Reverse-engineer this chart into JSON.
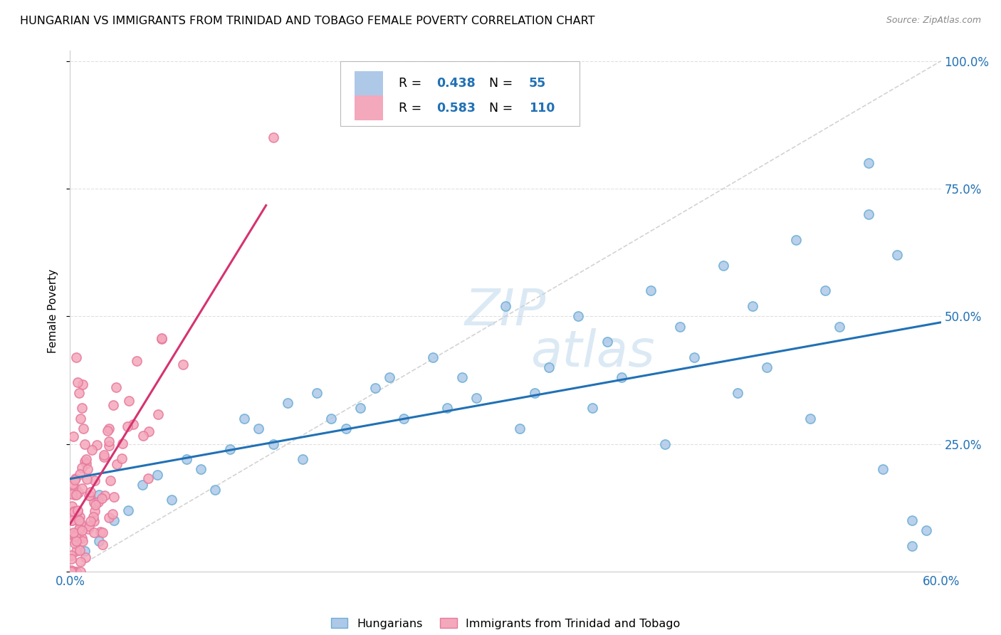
{
  "title": "HUNGARIAN VS IMMIGRANTS FROM TRINIDAD AND TOBAGO FEMALE POVERTY CORRELATION CHART",
  "source": "Source: ZipAtlas.com",
  "ylabel": "Female Poverty",
  "ytick_labels": [
    "",
    "25.0%",
    "50.0%",
    "75.0%",
    "100.0%"
  ],
  "ytick_values": [
    0.0,
    0.25,
    0.5,
    0.75,
    1.0
  ],
  "xmin": 0.0,
  "xmax": 0.6,
  "ymin": 0.0,
  "ymax": 1.05,
  "legend_label1": "Hungarians",
  "legend_label2": "Immigrants from Trinidad and Tobago",
  "R1": "0.438",
  "N1": "55",
  "R2": "0.583",
  "N2": "110",
  "color1": "#aec8e8",
  "color2": "#f4a8bb",
  "edge1": "#6baed6",
  "edge2": "#e77a9e",
  "line_color1": "#2171b5",
  "line_color2": "#d63370",
  "diagonal_color": "#c8c8c8",
  "background_color": "#ffffff",
  "title_fontsize": 11.5,
  "source_fontsize": 9,
  "watermark_line1": "ZIP",
  "watermark_line2": "atlas"
}
